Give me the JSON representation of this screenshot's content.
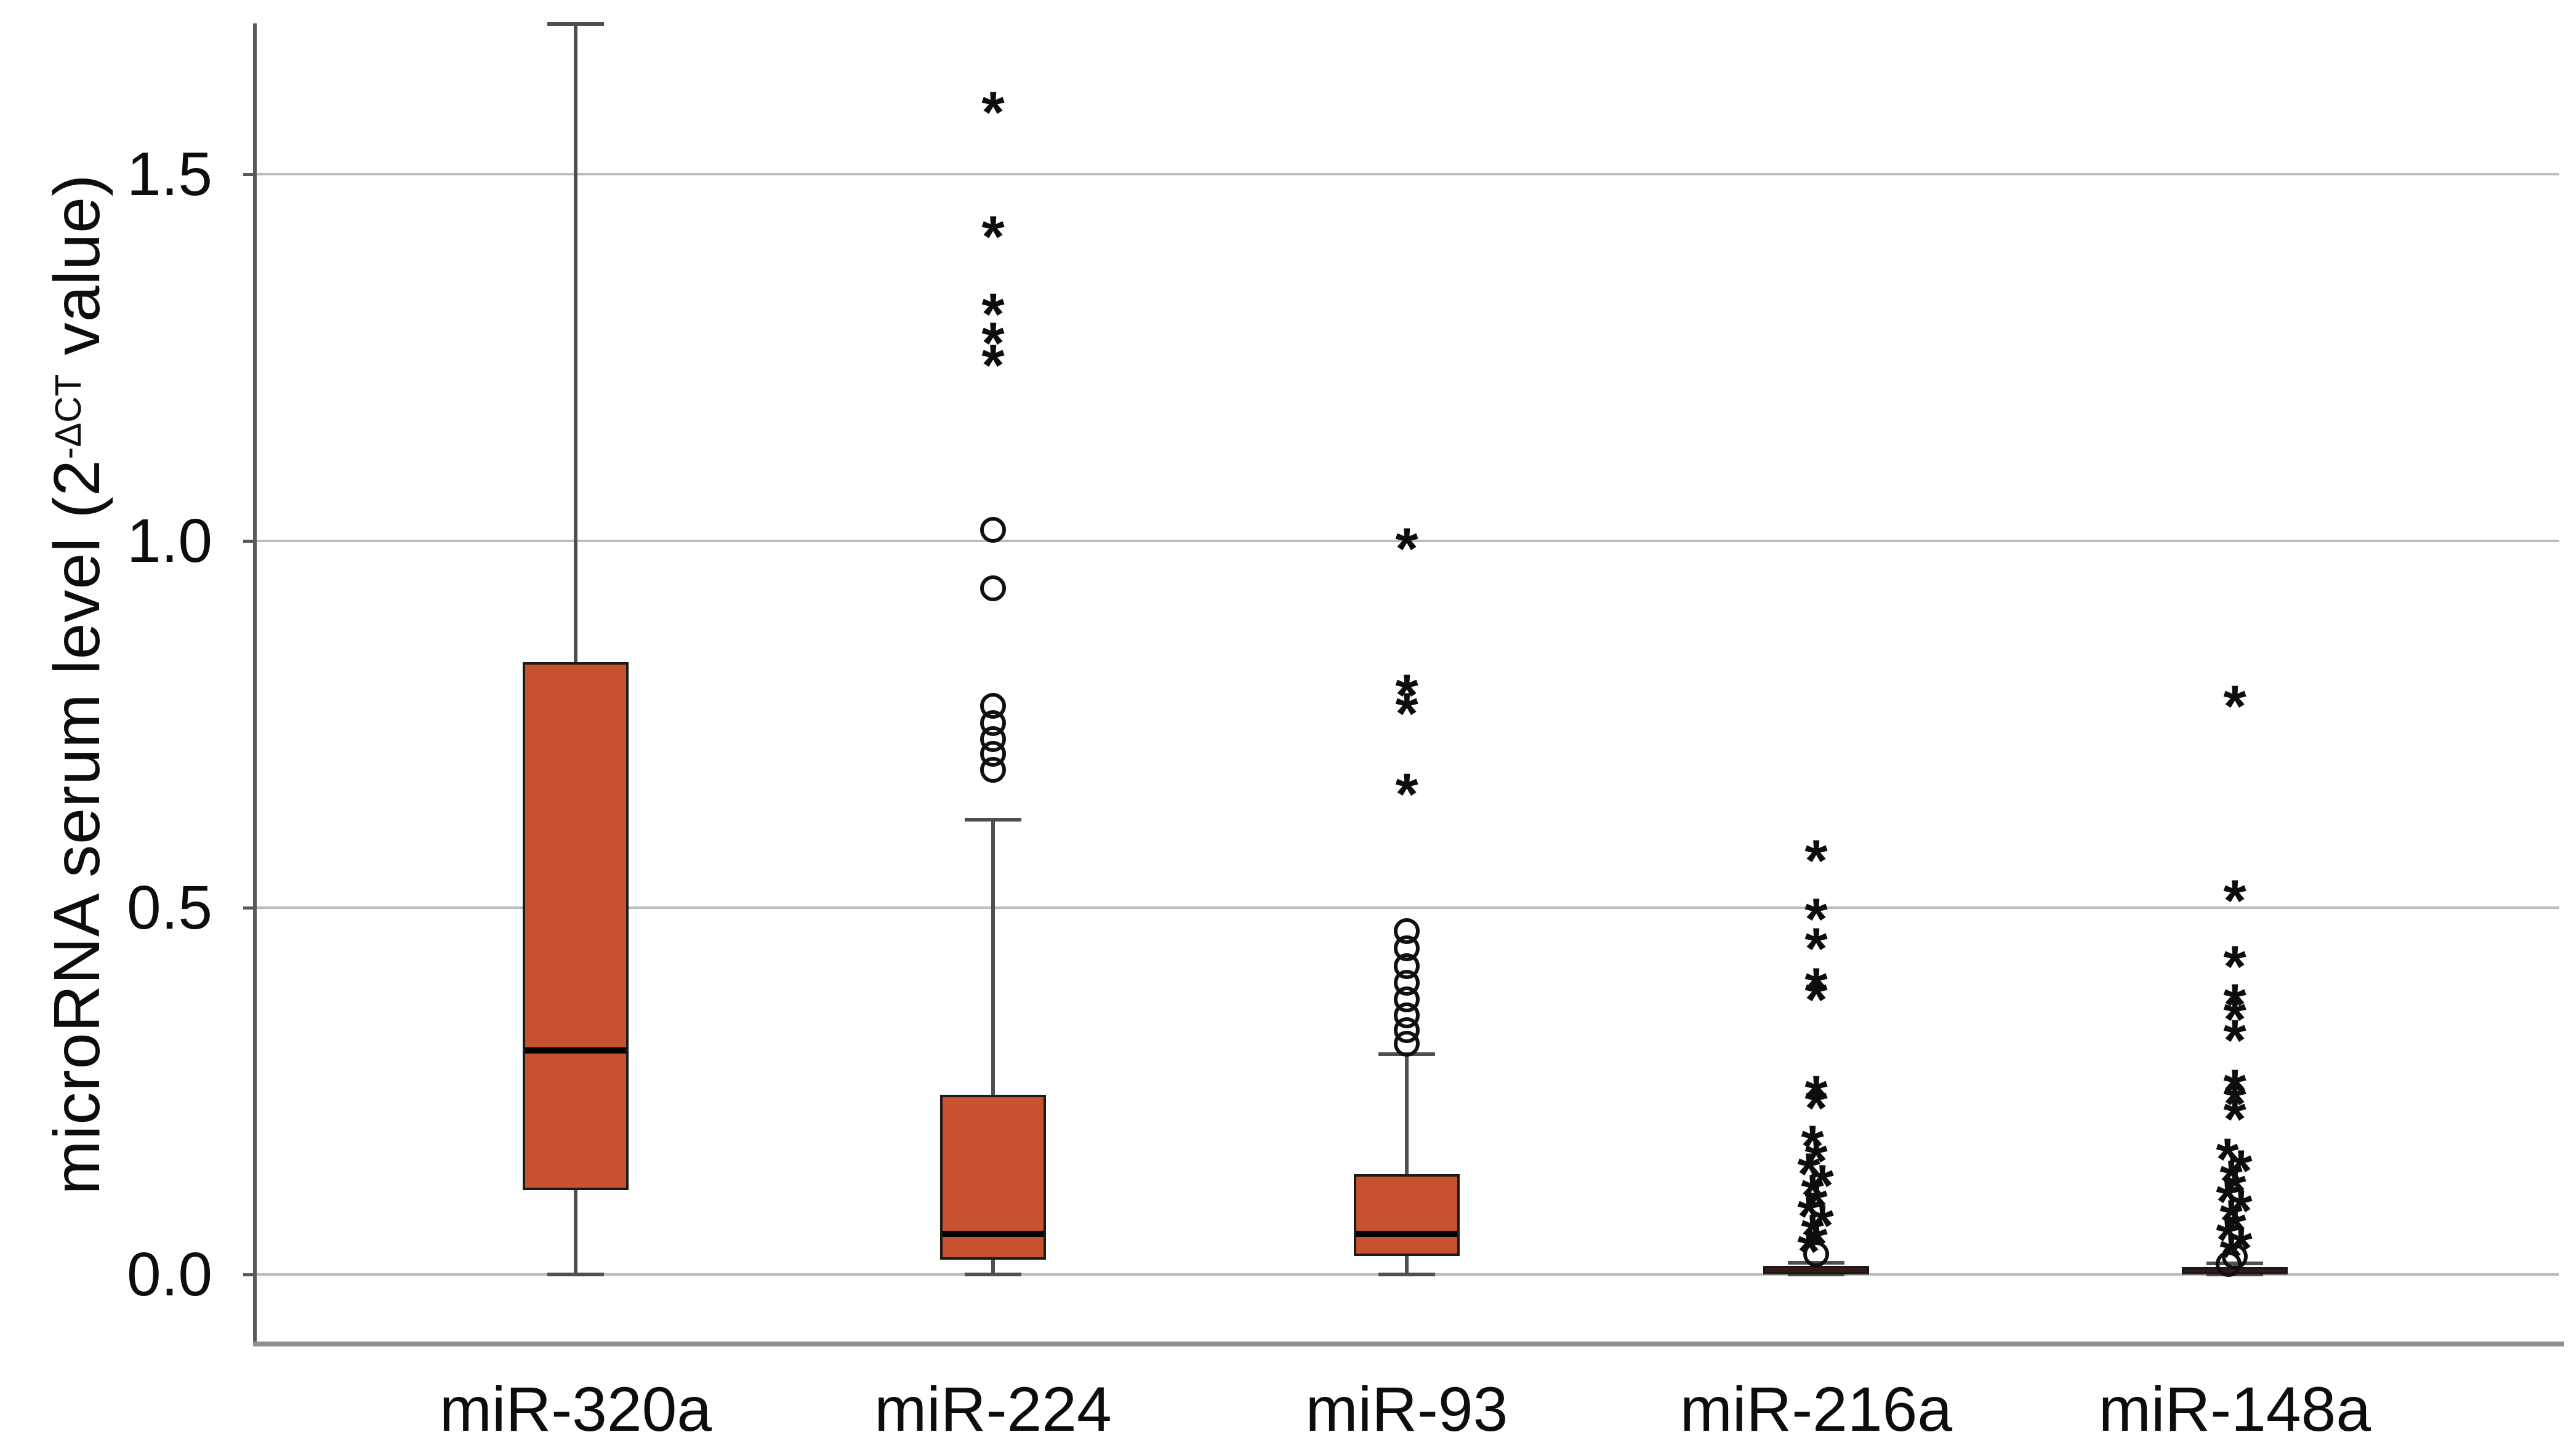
{
  "chart": {
    "y_title_prefix": "microRNA serum level (2",
    "y_title_sup": "-ΔCT",
    "y_title_suffix": " value)",
    "y_ticks": [
      "0.0",
      "0.5",
      "1.0",
      "1.5"
    ]
  },
  "chart_data": {
    "type": "boxplot",
    "title": "",
    "xlabel": "",
    "ylabel": "microRNA serum level (2^-ΔCT value)",
    "ylim": [
      -0.09,
      1.75
    ],
    "grid": "horizontal-only",
    "legend": "none",
    "y_tick_values": [
      0.0,
      0.5,
      1.0,
      1.5
    ],
    "categories": [
      "miR-320a",
      "miR-224",
      "miR-93",
      "miR-216a",
      "miR-148a"
    ],
    "series": [
      {
        "name": "miR-320a",
        "whisker_low": 0.0,
        "q1": 0.115,
        "median": 0.305,
        "q3": 0.835,
        "whisker_high": 1.705,
        "outliers_circle": [],
        "outliers_extreme": [],
        "collapsed": false
      },
      {
        "name": "miR-224",
        "whisker_low": 0.0,
        "q1": 0.02,
        "median": 0.055,
        "q3": 0.245,
        "whisker_high": 0.62,
        "outliers_circle": [
          1.015,
          0.935,
          0.775,
          0.752,
          0.73,
          0.71,
          0.688
        ],
        "outliers_extreme": [
          1.595,
          1.425,
          1.32,
          1.28,
          1.25
        ],
        "collapsed": false
      },
      {
        "name": "miR-93",
        "whisker_low": 0.0,
        "q1": 0.025,
        "median": 0.055,
        "q3": 0.137,
        "whisker_high": 0.3,
        "outliers_circle": [
          0.468,
          0.445,
          0.42,
          0.398,
          0.375,
          0.353,
          0.333,
          0.315
        ],
        "outliers_extreme": [
          1.0,
          0.8,
          0.775,
          0.665
        ],
        "collapsed": false
      },
      {
        "name": "miR-216a",
        "whisker_low": 0.0,
        "q1": 0.0,
        "median": 0.005,
        "q3": 0.012,
        "whisker_high": 0.016,
        "outliers_circle": [
          0.028
        ],
        "outliers_extreme": [
          0.575,
          0.495,
          0.455,
          0.4,
          0.385,
          0.253,
          0.237,
          0.185,
          0.165,
          0.148,
          0.132,
          0.118,
          0.104,
          0.09,
          0.077,
          0.064,
          0.052,
          0.042
        ],
        "collapsed": true
      },
      {
        "name": "miR-148a",
        "whisker_low": 0.0,
        "q1": 0.0,
        "median": 0.004,
        "q3": 0.01,
        "whisker_high": 0.015,
        "outliers_circle": [
          0.024,
          0.014
        ],
        "outliers_extreme": [
          0.785,
          0.52,
          0.43,
          0.378,
          0.358,
          0.33,
          0.262,
          0.243,
          0.222,
          0.168,
          0.152,
          0.138,
          0.124,
          0.11,
          0.097,
          0.084,
          0.071,
          0.058,
          0.046,
          0.035
        ],
        "collapsed": true
      }
    ],
    "colors": {
      "box_fill": "#c8512f",
      "collapsed_fill": "#3a1710",
      "box_border": "#1a1a1a",
      "median": "#000000",
      "whisker": "#4f4f4f",
      "gridline": "#bcbcbc",
      "axis": "#5a5a5a",
      "frame": "#8f8f8f",
      "text": "#0d0d0d",
      "background": "#ffffff"
    }
  }
}
